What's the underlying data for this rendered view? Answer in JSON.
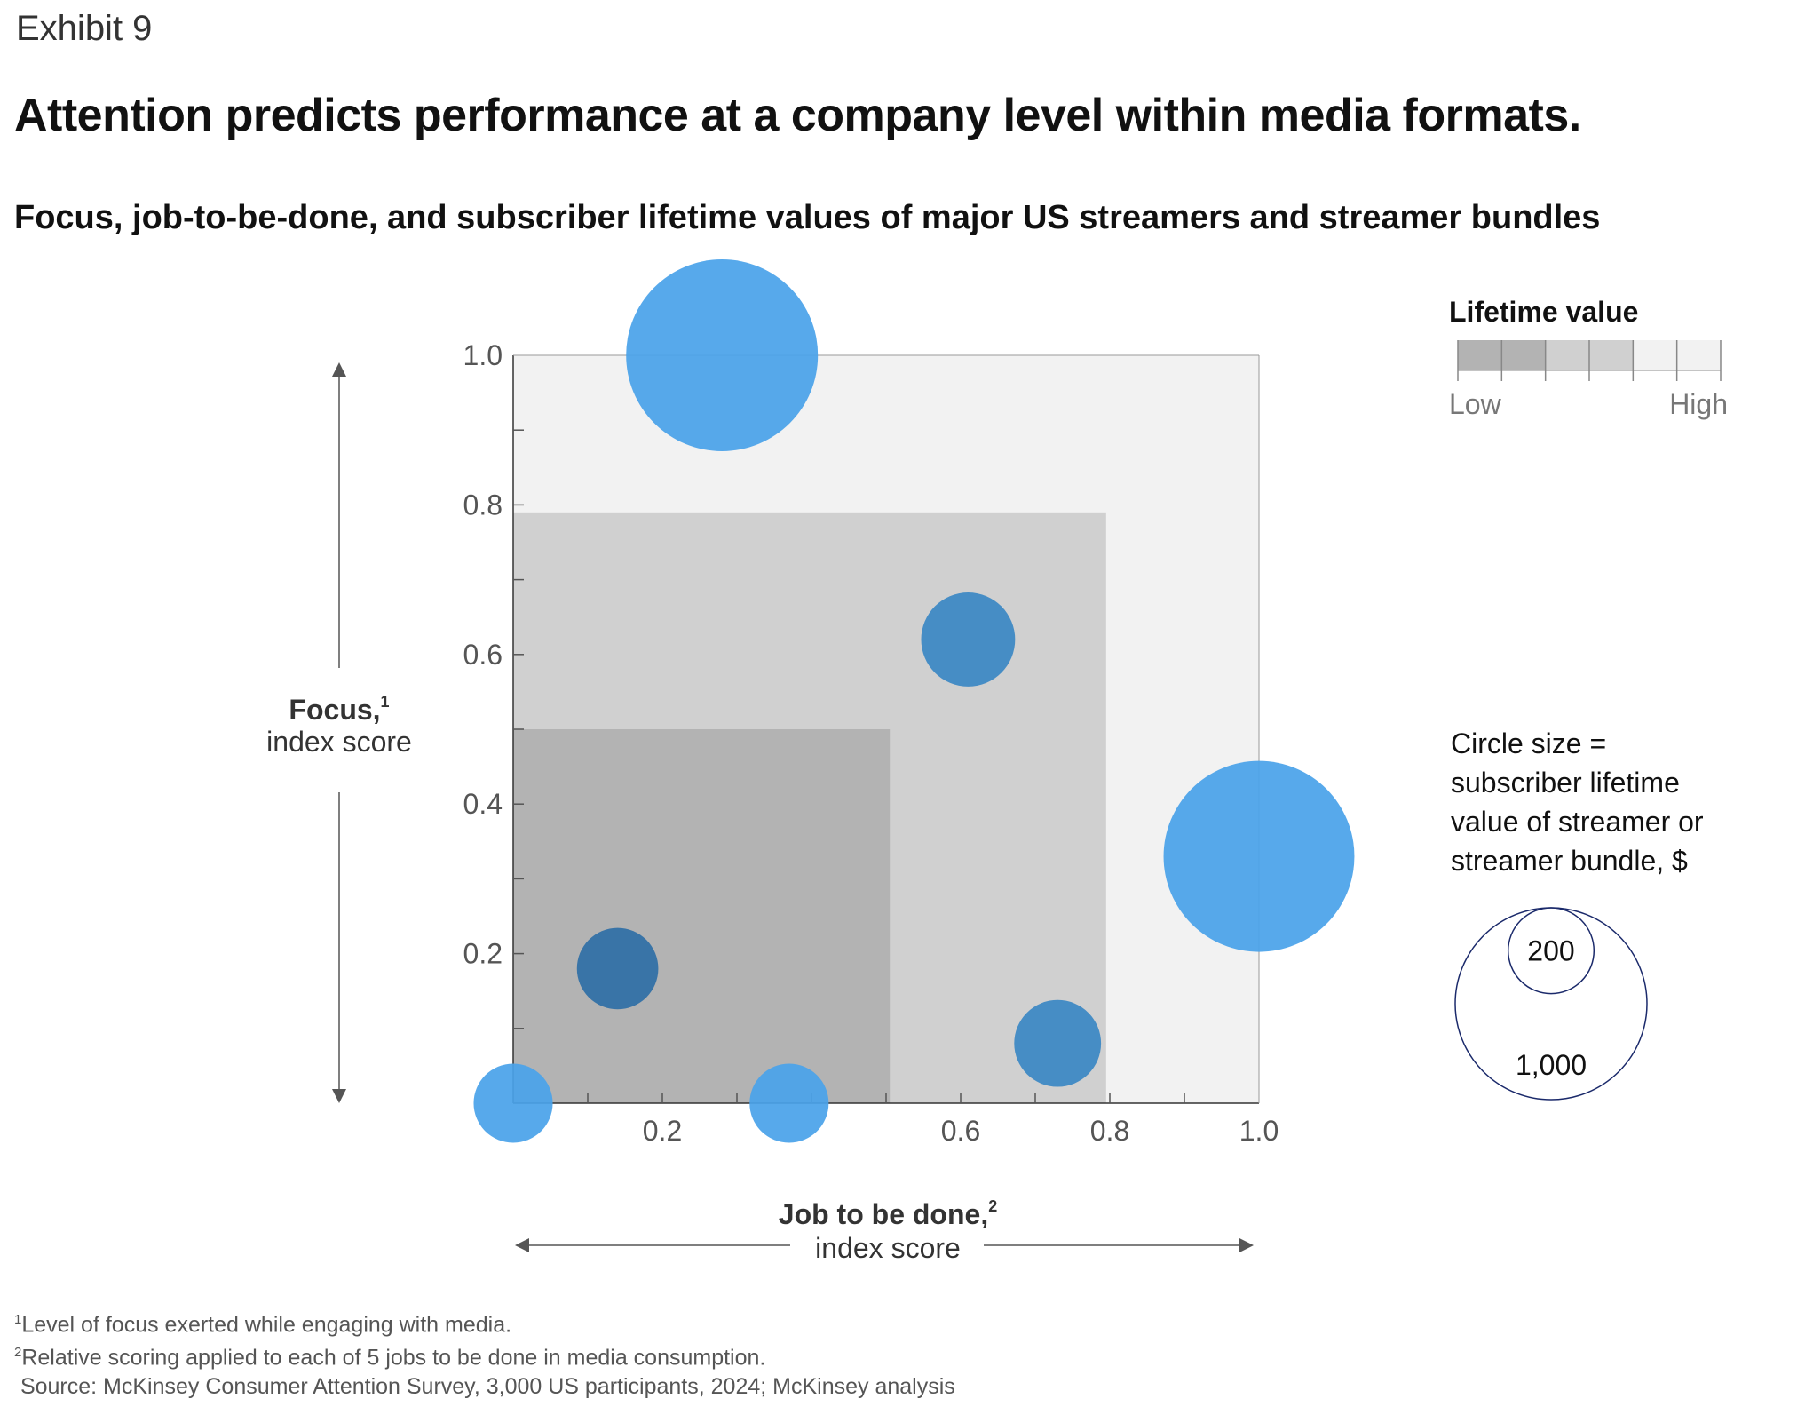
{
  "header": {
    "exhibit": "Exhibit 9",
    "title": "Attention predicts performance at a company level within media formats."
  },
  "chart_data": {
    "type": "scatter",
    "subtitle": "Focus, job-to-be-done, and subscriber lifetime values of major US streamers and streamer bundles",
    "xlabel": "Job to be done,",
    "xlabel_sup": "2",
    "xlabel_sub": "index score",
    "ylabel": "Focus,",
    "ylabel_sup": "1",
    "ylabel_sub": "index score",
    "xlim": [
      0,
      1
    ],
    "ylim": [
      0,
      1
    ],
    "x_tick_labels": [
      {
        "value": 0.2,
        "label": "0.2"
      },
      {
        "value": 0.6,
        "label": "0.6"
      },
      {
        "value": 0.8,
        "label": "0.8"
      },
      {
        "value": 1.0,
        "label": "1.0"
      }
    ],
    "y_tick_labels": [
      {
        "value": 0.2,
        "label": "0.2"
      },
      {
        "value": 0.4,
        "label": "0.4"
      },
      {
        "value": 0.6,
        "label": "0.6"
      },
      {
        "value": 0.8,
        "label": "0.8"
      },
      {
        "value": 1.0,
        "label": "1.0"
      }
    ],
    "minor_ticks": [
      0.1,
      0.2,
      0.3,
      0.4,
      0.5,
      0.6,
      0.7,
      0.8,
      0.9
    ],
    "background_zones": [
      {
        "x_max": 1.0,
        "y_max": 1.0,
        "color": "#f2f2f2"
      },
      {
        "x_max": 0.795,
        "y_max": 0.79,
        "color": "#d0d0d0"
      },
      {
        "x_max": 0.505,
        "y_max": 0.5,
        "color": "#b3b3b3"
      }
    ],
    "points": [
      {
        "x": 0.28,
        "y": 1.0,
        "lifetime_value": 1000,
        "color": "#4aa3ea"
      },
      {
        "x": 0.61,
        "y": 0.62,
        "lifetime_value": 240,
        "color": "#3b88c4"
      },
      {
        "x": 1.0,
        "y": 0.33,
        "lifetime_value": 990,
        "color": "#4aa3ea"
      },
      {
        "x": 0.14,
        "y": 0.18,
        "lifetime_value": 180,
        "color": "#2f6fa6"
      },
      {
        "x": 0.73,
        "y": 0.08,
        "lifetime_value": 205,
        "color": "#3b88c4"
      },
      {
        "x": 0.0,
        "y": 0.0,
        "lifetime_value": 170,
        "color": "#4aa3ea"
      },
      {
        "x": 0.37,
        "y": 0.0,
        "lifetime_value": 170,
        "color": "#4aa3ea"
      }
    ],
    "legend_color": {
      "title": "Lifetime value",
      "low_label": "Low",
      "high_label": "High",
      "colors": [
        "#b3b3b3",
        "#d0d0d0",
        "#f2f2f2"
      ]
    },
    "legend_size": {
      "text_lines": [
        "Circle size =",
        "subscriber lifetime",
        "value of streamer or",
        "streamer bundle, $"
      ],
      "small_value": 200,
      "small_label": "200",
      "large_value": 1000,
      "large_label": "1,000"
    }
  },
  "footnotes": {
    "fn1_mark": "1",
    "fn1": "Level of focus exerted while engaging with media.",
    "fn2_mark": "2",
    "fn2": "Relative scoring applied to each of 5 jobs to be done in media consumption.",
    "source": "Source: McKinsey Consumer Attention Survey, 3,000 US participants, 2024; McKinsey analysis"
  }
}
